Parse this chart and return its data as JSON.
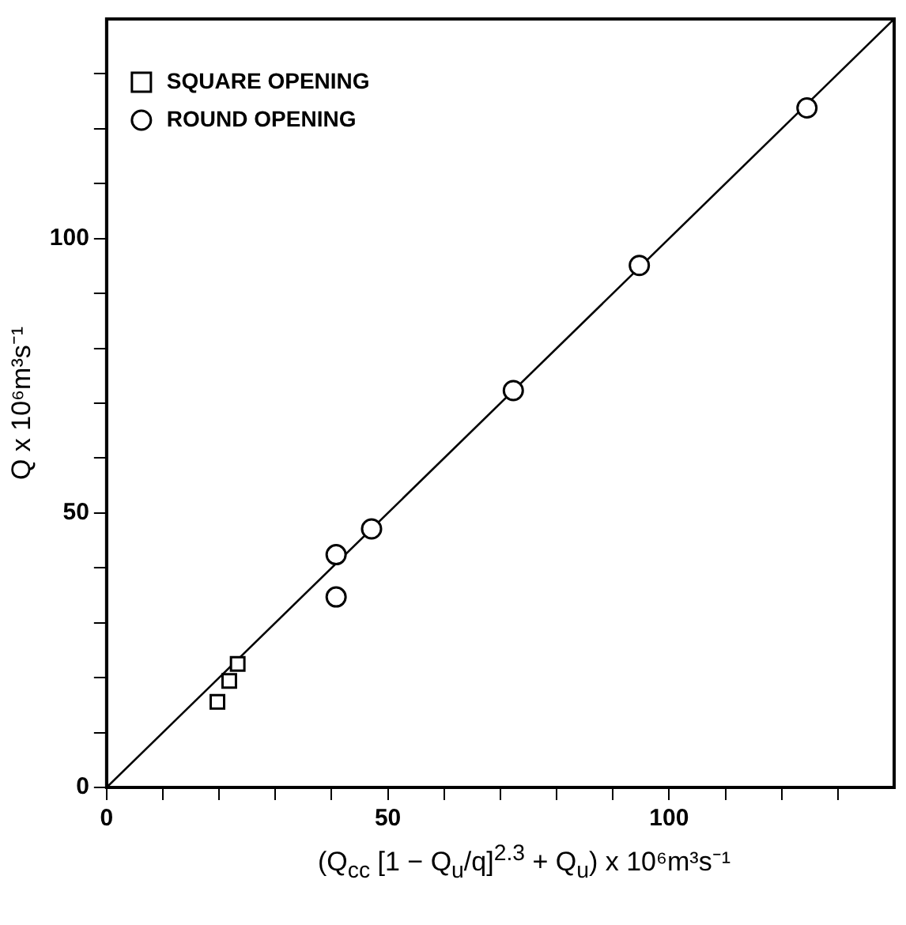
{
  "chart_data": {
    "type": "scatter",
    "xlabel": "(Q$_{cc}$ [1 − Q$_{u}$/q]$^{2.3}$ + Q$_{u}$) x 10⁶m³s⁻¹",
    "ylabel": "Q x 10⁶m³s⁻¹",
    "xlim": [
      0,
      140
    ],
    "ylim": [
      0,
      140
    ],
    "xticks": [
      0,
      {
        "value": 10,
        "label": null
      },
      {
        "value": 20,
        "label": null
      },
      {
        "value": 30,
        "label": null
      },
      {
        "value": 40,
        "label": null
      },
      50,
      {
        "value": 60,
        "label": null
      },
      {
        "value": 70,
        "label": null
      },
      {
        "value": 80,
        "label": null
      },
      {
        "value": 90,
        "label": null
      },
      100,
      {
        "value": 110,
        "label": null
      },
      {
        "value": 120,
        "label": null
      },
      {
        "value": 130,
        "label": null
      }
    ],
    "yticks": [
      0,
      {
        "value": 10,
        "label": null
      },
      {
        "value": 20,
        "label": null
      },
      {
        "value": 30,
        "label": null
      },
      {
        "value": 40,
        "label": null
      },
      50,
      {
        "value": 60,
        "label": null
      },
      {
        "value": 70,
        "label": null
      },
      {
        "value": 80,
        "label": null
      },
      {
        "value": 90,
        "label": null
      },
      100,
      {
        "value": 110,
        "label": null
      },
      {
        "value": 120,
        "label": null
      },
      {
        "value": 130,
        "label": null
      }
    ],
    "grid": false,
    "legend": "top left",
    "series": [
      {
        "name": "SQUARE OPENING",
        "color": "#000000",
        "marker": "square",
        "x": [
          19.7,
          21.8,
          23.3
        ],
        "values": [
          15.6,
          19.4,
          22.5
        ]
      },
      {
        "name": "ROUND OPENING",
        "color": "#000000",
        "marker": "circle",
        "x": [
          40.8,
          40.8,
          47.1,
          72.3,
          94.7,
          124.5
        ],
        "values": [
          42.4,
          34.7,
          47.1,
          72.3,
          95.1,
          123.8
        ]
      },
      {
        "type": "line",
        "color": "#000000",
        "marker": "none",
        "x": [
          0,
          140
        ],
        "values": [
          0,
          140
        ]
      }
    ]
  }
}
